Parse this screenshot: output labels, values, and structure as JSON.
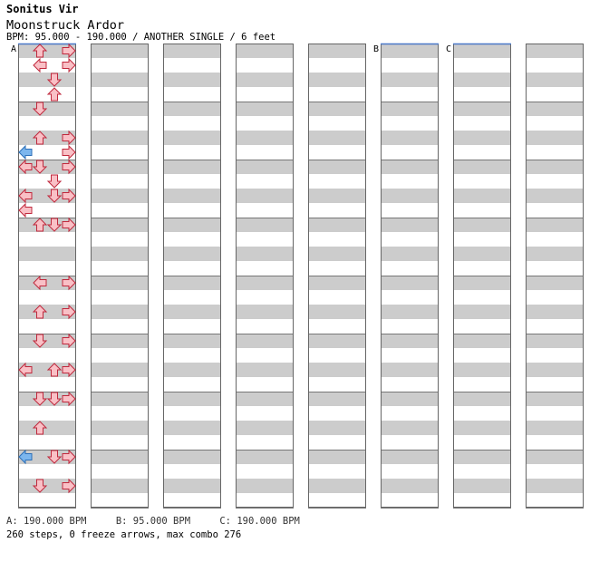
{
  "header": {
    "artist": "Sonitus Vir",
    "title": "Moonstruck Ardor",
    "info": "BPM: 95.000 - 190.000 / ANOTHER SINGLE / 6 feet"
  },
  "bpm_markers": [
    {
      "label": "A",
      "col": 0,
      "row": 0
    },
    {
      "label": "B",
      "col": 5,
      "row": 0
    },
    {
      "label": "C",
      "col": 6,
      "row": 0
    }
  ],
  "bpm_legend": [
    "A: 190.000 BPM",
    "B: 95.000 BPM",
    "C: 190.000 BPM"
  ],
  "stats": "260 steps, 0 freeze arrows, max combo 276",
  "colors": {
    "note_red": "#f9c0c6",
    "note_red_stroke": "#c0283c",
    "note_blue": "#7cb6ee",
    "note_blue_stroke": "#2c6fb8",
    "band": "#cccccc"
  },
  "chart_data": {
    "type": "table",
    "description_note": "",
    "columns": 8,
    "rows_per_column": 32,
    "notes": [
      [
        1,
        0,
        "U",
        "r"
      ],
      [
        3,
        0,
        "R",
        "r"
      ],
      [
        1,
        1,
        "L",
        "r"
      ],
      [
        3,
        1,
        "R",
        "r"
      ],
      [
        2,
        2,
        "D",
        "r"
      ],
      [
        2,
        3,
        "U",
        "r"
      ],
      [
        1,
        4,
        "D",
        "r"
      ],
      [
        1,
        6,
        "U",
        "r"
      ],
      [
        3,
        6,
        "R",
        "r"
      ],
      [
        0,
        7,
        "L",
        "b"
      ],
      [
        3,
        7,
        "R",
        "r"
      ],
      [
        0,
        8,
        "L",
        "r"
      ],
      [
        1,
        8,
        "D",
        "r"
      ],
      [
        3,
        8,
        "R",
        "r"
      ],
      [
        2,
        9,
        "D",
        "r"
      ],
      [
        0,
        10,
        "L",
        "r"
      ],
      [
        2,
        10,
        "D",
        "r"
      ],
      [
        3,
        10,
        "R",
        "r"
      ],
      [
        0,
        11,
        "L",
        "r"
      ],
      [
        1,
        12,
        "U",
        "r"
      ],
      [
        2,
        12,
        "D",
        "r"
      ],
      [
        3,
        12,
        "R",
        "r"
      ],
      [
        1,
        16,
        "L",
        "r"
      ],
      [
        3,
        16,
        "R",
        "r"
      ],
      [
        1,
        18,
        "U",
        "r"
      ],
      [
        3,
        18,
        "R",
        "r"
      ],
      [
        1,
        20,
        "D",
        "r"
      ],
      [
        3,
        20,
        "R",
        "r"
      ],
      [
        0,
        22,
        "L",
        "r"
      ],
      [
        2,
        22,
        "U",
        "r"
      ],
      [
        3,
        22,
        "R",
        "r"
      ],
      [
        1,
        24,
        "D",
        "r"
      ],
      [
        2,
        24,
        "D",
        "r"
      ],
      [
        3,
        24,
        "R",
        "r"
      ],
      [
        1,
        26,
        "U",
        "r"
      ],
      [
        0,
        28,
        "L",
        "b"
      ],
      [
        2,
        28,
        "D",
        "r"
      ],
      [
        3,
        28,
        "R",
        "r"
      ],
      [
        1,
        30,
        "D",
        "r"
      ],
      [
        3,
        30,
        "R",
        "r"
      ]
    ]
  }
}
